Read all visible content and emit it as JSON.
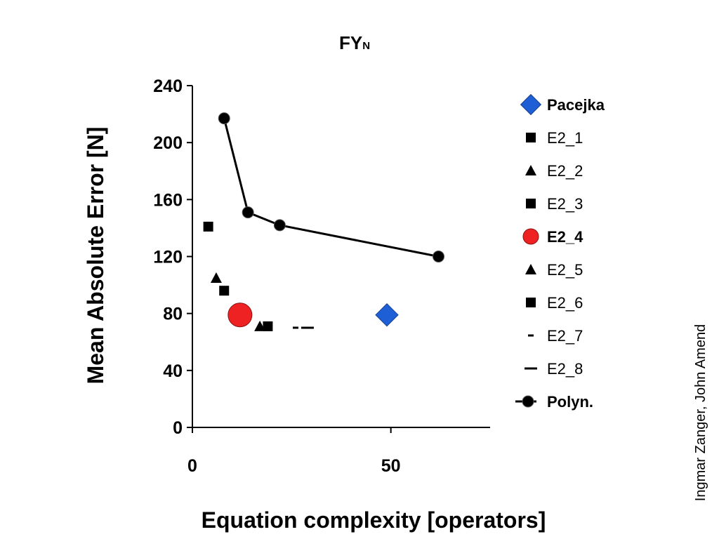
{
  "chart_data": {
    "type": "scatter",
    "title": "FY",
    "title_subscript": "N",
    "xlabel": "Equation complexity [operators]",
    "ylabel": "Mean Absolute Error [N]",
    "xlim": [
      0,
      75
    ],
    "ylim": [
      0,
      240
    ],
    "xticks": [
      "0",
      "50"
    ],
    "yticks": [
      "0",
      "40",
      "80",
      "120",
      "160",
      "200",
      "240"
    ],
    "grid": false,
    "legend_position": "right",
    "series": [
      {
        "name": "Pacejka",
        "marker": "diamond",
        "color": "#1f5fd6",
        "bold": true,
        "points": [
          [
            49,
            79
          ]
        ]
      },
      {
        "name": "E2_1",
        "marker": "square",
        "color": "#000000",
        "bold": false,
        "points": [
          [
            4,
            141
          ]
        ]
      },
      {
        "name": "E2_2",
        "marker": "triangle",
        "color": "#000000",
        "bold": false,
        "points": [
          [
            6,
            105
          ]
        ]
      },
      {
        "name": "E2_3",
        "marker": "square",
        "color": "#000000",
        "bold": false,
        "points": [
          [
            8,
            96
          ]
        ]
      },
      {
        "name": "E2_4",
        "marker": "circle-large",
        "color": "#ee2222",
        "bold": true,
        "points": [
          [
            12,
            79
          ]
        ]
      },
      {
        "name": "E2_5",
        "marker": "triangle",
        "color": "#000000",
        "bold": false,
        "points": [
          [
            17,
            71
          ]
        ]
      },
      {
        "name": "E2_6",
        "marker": "square",
        "color": "#000000",
        "bold": false,
        "points": [
          [
            19,
            71
          ]
        ]
      },
      {
        "name": "E2_7",
        "marker": "dash-short",
        "color": "#000000",
        "bold": false,
        "points": [
          [
            26,
            70
          ]
        ]
      },
      {
        "name": "E2_8",
        "marker": "dash",
        "color": "#000000",
        "bold": false,
        "points": [
          [
            29,
            70
          ]
        ]
      },
      {
        "name": "Polyn.",
        "marker": "circle-line",
        "color": "#000000",
        "bold": true,
        "points": [
          [
            8,
            217
          ],
          [
            14,
            151
          ],
          [
            22,
            142
          ],
          [
            62,
            120
          ]
        ]
      }
    ]
  },
  "credit": "Ingmar Zanger, John Amend"
}
